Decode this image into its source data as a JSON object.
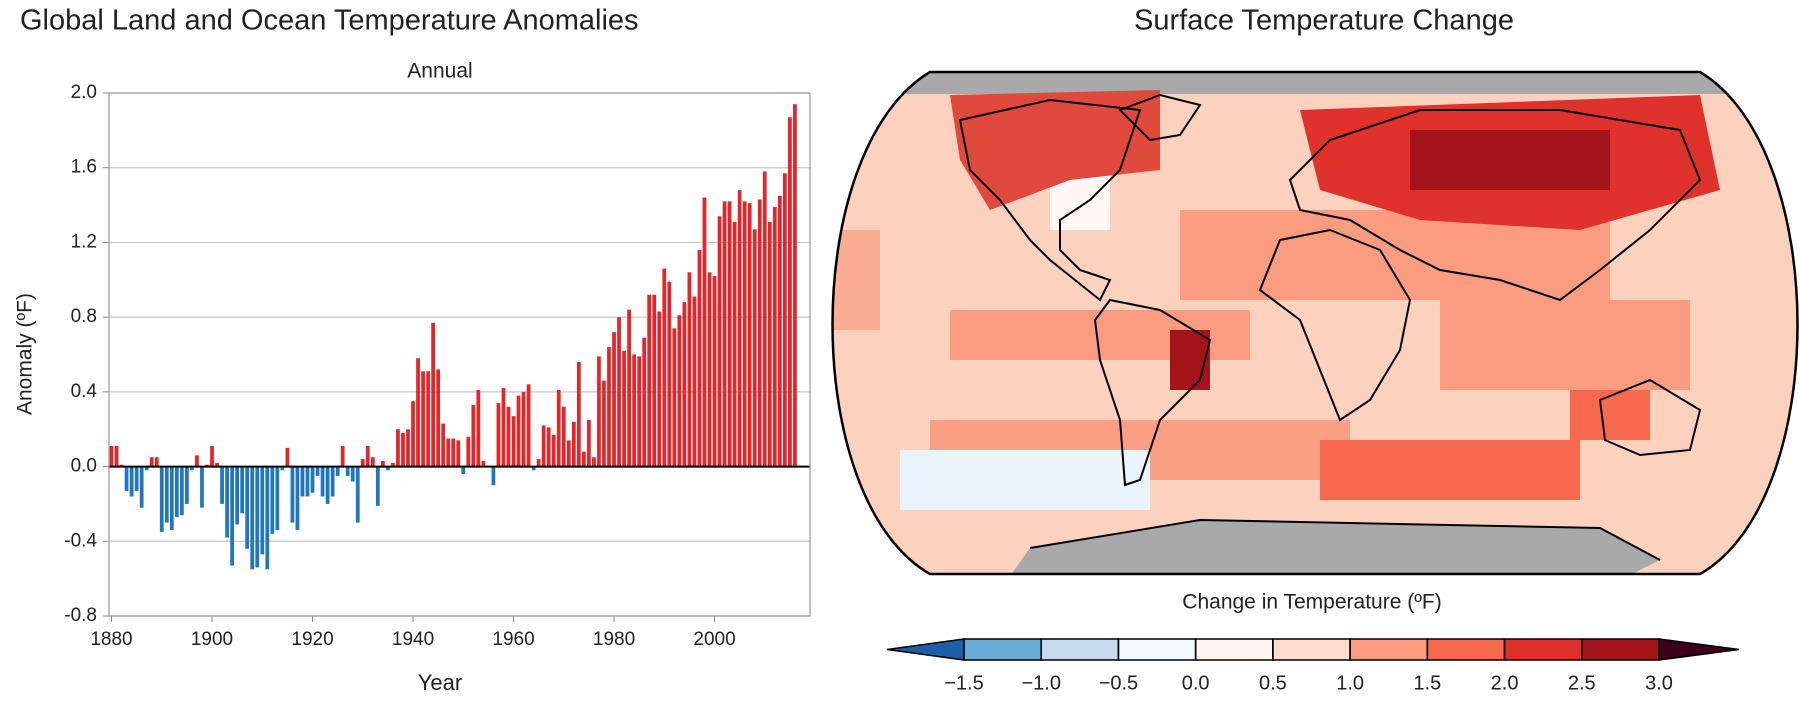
{
  "chart_data": [
    {
      "type": "bar",
      "title": "Global Land and Ocean Temperature Anomalies",
      "subtitle": "Annual",
      "xlabel": "Year",
      "ylabel": "Anomaly (ºF)",
      "x": [
        1880,
        1881,
        1882,
        1883,
        1884,
        1885,
        1886,
        1887,
        1888,
        1889,
        1890,
        1891,
        1892,
        1893,
        1894,
        1895,
        1896,
        1897,
        1898,
        1899,
        1900,
        1901,
        1902,
        1903,
        1904,
        1905,
        1906,
        1907,
        1908,
        1909,
        1910,
        1911,
        1912,
        1913,
        1914,
        1915,
        1916,
        1917,
        1918,
        1919,
        1920,
        1921,
        1922,
        1923,
        1924,
        1925,
        1926,
        1927,
        1928,
        1929,
        1930,
        1931,
        1932,
        1933,
        1934,
        1935,
        1936,
        1937,
        1938,
        1939,
        1940,
        1941,
        1942,
        1943,
        1944,
        1945,
        1946,
        1947,
        1948,
        1949,
        1950,
        1951,
        1952,
        1953,
        1954,
        1955,
        1956,
        1957,
        1958,
        1959,
        1960,
        1961,
        1962,
        1963,
        1964,
        1965,
        1966,
        1967,
        1968,
        1969,
        1970,
        1971,
        1972,
        1973,
        1974,
        1975,
        1976,
        1977,
        1978,
        1979,
        1980,
        1981,
        1982,
        1983,
        1984,
        1985,
        1986,
        1987,
        1988,
        1989,
        1990,
        1991,
        1992,
        1993,
        1994,
        1995,
        1996,
        1997,
        1998,
        1999,
        2000,
        2001,
        2002,
        2003,
        2004,
        2005,
        2006,
        2007,
        2008,
        2009,
        2010,
        2011,
        2012,
        2013,
        2014,
        2015,
        2016
      ],
      "values": [
        0.11,
        0.11,
        0.01,
        -0.13,
        -0.16,
        -0.13,
        -0.22,
        -0.02,
        0.05,
        0.05,
        -0.35,
        -0.3,
        -0.34,
        -0.27,
        -0.26,
        -0.2,
        -0.02,
        0.06,
        -0.22,
        0.01,
        0.11,
        0.02,
        -0.2,
        -0.38,
        -0.53,
        -0.31,
        -0.25,
        -0.44,
        -0.55,
        -0.54,
        -0.47,
        -0.55,
        -0.36,
        -0.34,
        -0.02,
        0.1,
        -0.3,
        -0.34,
        -0.16,
        -0.16,
        -0.14,
        -0.05,
        -0.16,
        -0.2,
        -0.16,
        -0.05,
        0.11,
        -0.05,
        -0.08,
        -0.3,
        0.04,
        0.11,
        0.05,
        -0.21,
        0.03,
        -0.02,
        0.02,
        0.2,
        0.18,
        0.2,
        0.35,
        0.58,
        0.51,
        0.51,
        0.77,
        0.52,
        0.23,
        0.15,
        0.15,
        0.14,
        -0.04,
        0.16,
        0.33,
        0.41,
        0.03,
        0.0,
        -0.1,
        0.34,
        0.42,
        0.32,
        0.27,
        0.38,
        0.4,
        0.44,
        -0.02,
        0.04,
        0.22,
        0.21,
        0.17,
        0.41,
        0.32,
        0.14,
        0.24,
        0.56,
        0.08,
        0.25,
        0.05,
        0.59,
        0.46,
        0.64,
        0.72,
        0.8,
        0.62,
        0.84,
        0.6,
        0.59,
        0.69,
        0.92,
        0.92,
        0.83,
        1.06,
        0.99,
        0.74,
        0.81,
        0.88,
        1.04,
        0.91,
        1.16,
        1.44,
        1.04,
        1.02,
        1.34,
        1.42,
        1.42,
        1.31,
        1.48,
        1.42,
        1.41,
        1.27,
        1.43,
        1.58,
        1.31,
        1.39,
        1.45,
        1.57,
        1.87,
        1.94
      ],
      "positive_color": "#e4262b",
      "negative_color": "#2176bd",
      "xlim": [
        1879.5,
        2019
      ],
      "xticks": [
        1880,
        1900,
        1920,
        1940,
        1960,
        1980,
        2000
      ],
      "ylim": [
        -0.8,
        2.0
      ],
      "yticks": [
        -0.8,
        -0.4,
        {
          "value": 0,
          "label": "0.0"
        },
        0.4,
        0.8,
        1.2,
        1.6,
        {
          "value": 2,
          "label": "2.0"
        }
      ],
      "grid": true
    },
    {
      "type": "map",
      "title": "Surface Temperature Change",
      "colorbar_label": "Change in Temperature (ºF)",
      "clim": [
        -1.5,
        3.0
      ],
      "cticks": [
        {
          "value": -1.5,
          "label": "−1.5"
        },
        {
          "value": -1,
          "label": "−1.0"
        },
        {
          "value": -0.5,
          "label": "−0.5"
        },
        {
          "value": 0,
          "label": "0.0"
        },
        0.5,
        {
          "value": 1,
          "label": "1.0"
        },
        1.5,
        {
          "value": 2,
          "label": "2.0"
        },
        2.5,
        {
          "value": 3,
          "label": "3.0"
        }
      ],
      "colors": [
        "#1b5fa8",
        "#6aaed8",
        "#c6dbef",
        "#f2f9ff",
        "#fff4ef",
        "#fddccb",
        "#fb9c80",
        "#f7694f",
        "#dd2f2a",
        "#a3141b",
        "#3d0019"
      ]
    }
  ]
}
